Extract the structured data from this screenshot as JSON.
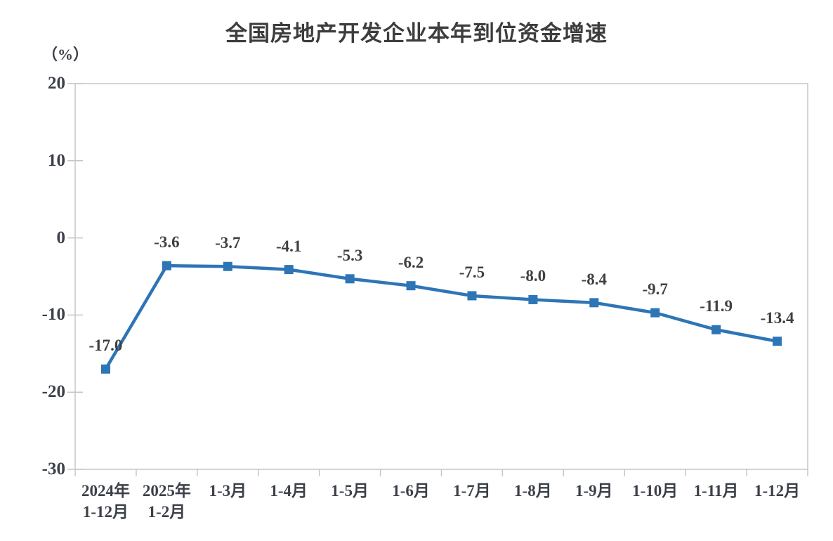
{
  "chart_data": {
    "type": "line",
    "title": "全国房地产开发企业本年到位资金增速",
    "unit_label": "（%）",
    "categories": [
      "2024年\n1-12月",
      "2025年\n1-2月",
      "1-3月",
      "1-4月",
      "1-5月",
      "1-6月",
      "1-7月",
      "1-8月",
      "1-9月",
      "1-10月",
      "1-11月",
      "1-12月"
    ],
    "values": [
      -17.0,
      -3.6,
      -3.7,
      -4.1,
      -5.3,
      -6.2,
      -7.5,
      -8.0,
      -8.4,
      -9.7,
      -11.9,
      -13.4
    ],
    "data_labels": [
      "-17.0",
      "-3.6",
      "-3.7",
      "-4.1",
      "-5.3",
      "-6.2",
      "-7.5",
      "-8.0",
      "-8.4",
      "-9.7",
      "-11.9",
      "-13.4"
    ],
    "y_ticks": [
      20,
      10,
      0,
      -10,
      -20,
      -30
    ],
    "ylim": [
      -30,
      20
    ],
    "xlabel": "",
    "ylabel": "（%）",
    "grid": false,
    "legend_position": "none",
    "line_color": "#2E75B6",
    "marker": "square",
    "axis_color": "#C6C6C6",
    "text_color": "#3c4049"
  }
}
